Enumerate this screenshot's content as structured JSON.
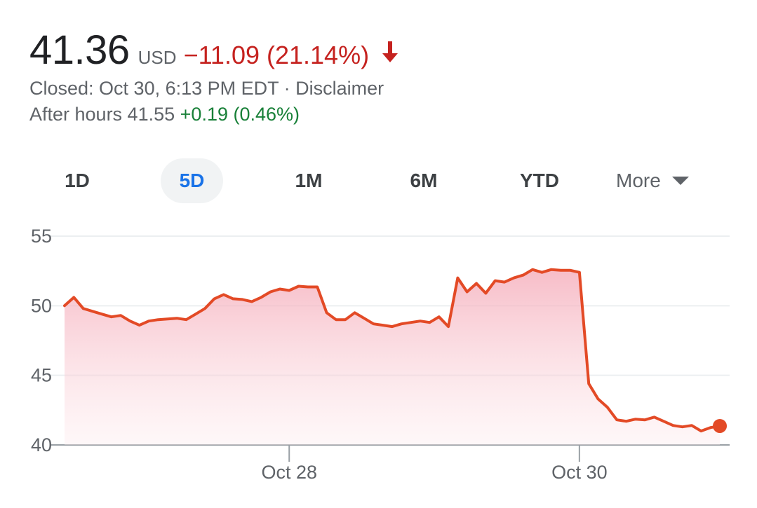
{
  "quote": {
    "price": "41.36",
    "currency": "USD",
    "change": "−11.09 (21.14%)",
    "closed_text": "Closed: Oct 30, 6:13 PM EDT · Disclaimer",
    "after_hours_label": "After hours 41.55",
    "after_hours_change": "+0.19 (0.46%)"
  },
  "colors": {
    "negative": "#c5221f",
    "positive": "#188038",
    "line": "#e34a26",
    "active_range": "#1a73e8"
  },
  "icons": {
    "change_direction": "down-arrow-icon",
    "more": "caret-down-icon"
  },
  "ranges": {
    "items": [
      "1D",
      "5D",
      "1M",
      "6M",
      "YTD"
    ],
    "active": "5D",
    "more_label": "More"
  },
  "chart_data": {
    "type": "area",
    "ylim": [
      40,
      55
    ],
    "y_ticks": [
      55,
      50,
      45,
      40
    ],
    "x_tick_labels": [
      "Oct 28",
      "Oct 30"
    ],
    "grid": true,
    "y": [
      50.0,
      50.6,
      49.8,
      49.6,
      49.4,
      49.2,
      49.3,
      48.9,
      48.6,
      48.9,
      49.0,
      49.05,
      49.1,
      49.0,
      49.4,
      49.8,
      50.5,
      50.8,
      50.5,
      50.45,
      50.3,
      50.6,
      51.0,
      51.2,
      51.1,
      51.4,
      51.35,
      51.35,
      49.5,
      49.0,
      49.0,
      49.5,
      49.1,
      48.7,
      48.6,
      48.5,
      48.7,
      48.8,
      48.9,
      48.8,
      49.2,
      48.5,
      52.0,
      51.0,
      51.6,
      50.9,
      51.8,
      51.7,
      52.0,
      52.2,
      52.6,
      52.4,
      52.6,
      52.55,
      52.55,
      52.4,
      44.4,
      43.3,
      42.7,
      41.8,
      41.7,
      41.85,
      41.8,
      42.0,
      41.7,
      41.4,
      41.3,
      41.4,
      41.0,
      41.25,
      41.36
    ],
    "x_tick_index": [
      24,
      55
    ],
    "last_point_marker": true
  }
}
